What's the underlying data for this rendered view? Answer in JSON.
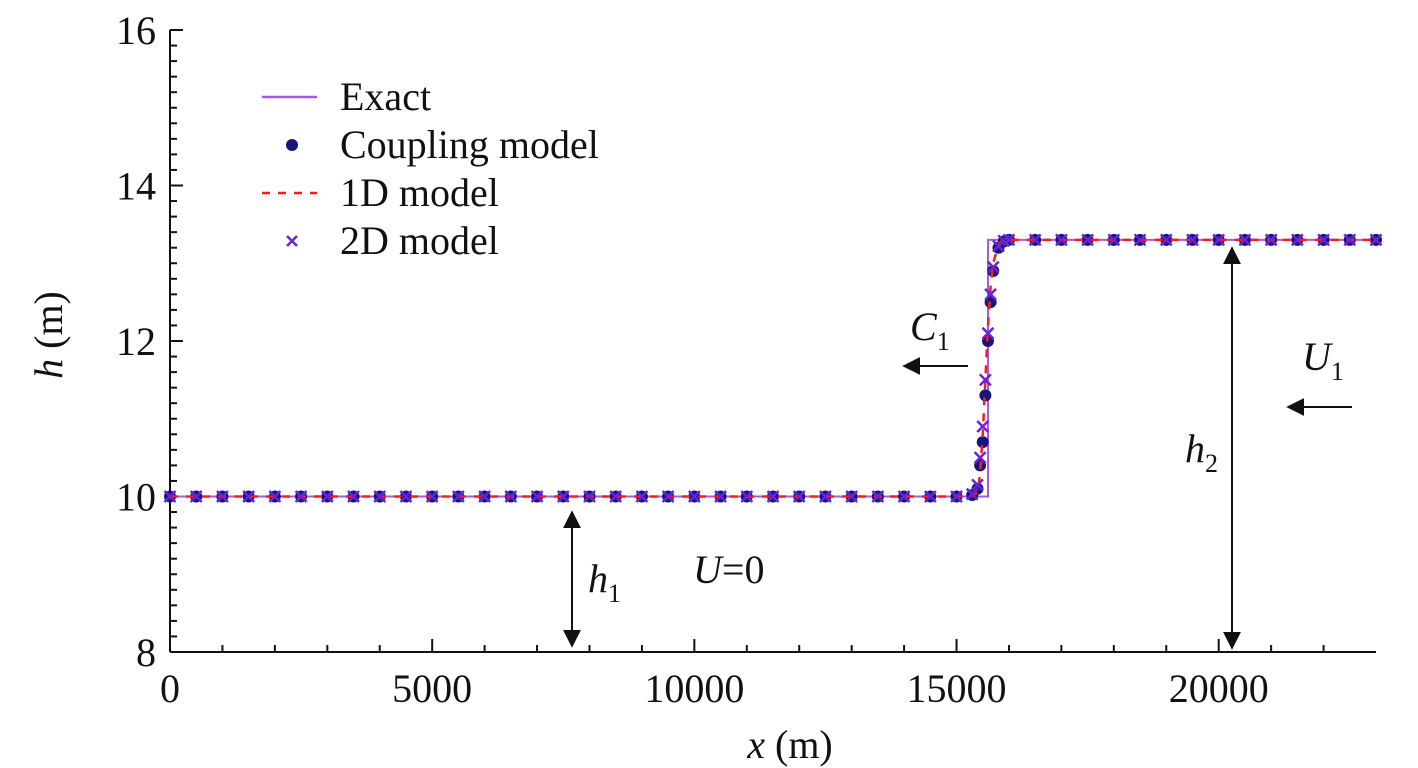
{
  "chart_data": {
    "type": "line",
    "x_label": {
      "var": "x",
      "unit": "(m)"
    },
    "y_label": {
      "var": "h",
      "unit": "(m)"
    },
    "xlim": [
      0,
      23000
    ],
    "ylim": [
      8,
      16
    ],
    "xticks": [
      0,
      5000,
      10000,
      15000,
      20000
    ],
    "yticks": [
      8,
      10,
      12,
      14,
      16
    ],
    "xminor_ticks": [
      1000,
      2000,
      3000,
      4000,
      6000,
      7000,
      8000,
      9000,
      11000,
      12000,
      13000,
      14000,
      16000,
      17000,
      18000,
      19000,
      21000,
      22000
    ],
    "yminor_ticks": [
      8.2,
      8.4,
      8.6,
      8.8,
      9,
      9.2,
      9.4,
      9.6,
      9.8,
      10.2,
      10.4,
      10.6,
      10.8,
      11,
      11.2,
      11.4,
      11.6,
      11.8,
      12.2,
      12.4,
      12.6,
      12.8,
      13,
      13.2,
      13.4,
      13.6,
      13.8,
      14.2,
      14.4,
      14.6,
      14.8,
      15,
      15.2,
      15.4,
      15.6,
      15.8
    ],
    "x": [
      0,
      500,
      1000,
      1500,
      2000,
      2500,
      3000,
      3500,
      4000,
      4500,
      5000,
      5500,
      6000,
      6500,
      7000,
      7500,
      8000,
      8500,
      9000,
      9500,
      10000,
      10500,
      11000,
      11500,
      12000,
      12500,
      13000,
      13500,
      14000,
      14500,
      15000,
      15300,
      15400,
      15450,
      15500,
      15550,
      15600,
      15650,
      15700,
      15800,
      15900,
      16000,
      16500,
      17000,
      17500,
      18000,
      18500,
      19000,
      19500,
      20000,
      20500,
      21000,
      21500,
      22000,
      22500,
      23000
    ],
    "series": [
      {
        "name": "Exact",
        "color": "#a05ce8",
        "style": "line",
        "x": [
          0,
          15600,
          15600,
          23000
        ],
        "values": [
          10,
          10,
          13.3,
          13.3
        ]
      },
      {
        "name": "Coupling model",
        "color": "#17177a",
        "style": "circle",
        "values": [
          10,
          10,
          10,
          10,
          10,
          10,
          10,
          10,
          10,
          10,
          10,
          10,
          10,
          10,
          10,
          10,
          10,
          10,
          10,
          10,
          10,
          10,
          10,
          10,
          10,
          10,
          10,
          10,
          10,
          10,
          10,
          10.02,
          10.1,
          10.4,
          10.7,
          11.3,
          12.0,
          12.5,
          12.9,
          13.2,
          13.28,
          13.3,
          13.3,
          13.3,
          13.3,
          13.3,
          13.3,
          13.3,
          13.3,
          13.3,
          13.3,
          13.3,
          13.3,
          13.3,
          13.3,
          13.3
        ]
      },
      {
        "name": "1D model",
        "color": "#ff1a1a",
        "style": "dashed",
        "values": [
          10,
          10,
          10,
          10,
          10,
          10,
          10,
          10,
          10,
          10,
          10,
          10,
          10,
          10,
          10,
          10,
          10,
          10,
          10,
          10,
          10,
          10,
          10,
          10,
          10,
          10,
          10,
          10,
          10,
          10,
          10,
          10.01,
          10.05,
          10.3,
          10.8,
          11.5,
          12.2,
          12.7,
          13.0,
          13.25,
          13.3,
          13.3,
          13.3,
          13.3,
          13.3,
          13.3,
          13.3,
          13.3,
          13.3,
          13.3,
          13.3,
          13.3,
          13.3,
          13.3,
          13.3,
          13.3
        ]
      },
      {
        "name": "2D model",
        "color": "#6a22d6",
        "style": "cross",
        "values": [
          10,
          10,
          10,
          10,
          10,
          10,
          10,
          10,
          10,
          10,
          10,
          10,
          10,
          10,
          10,
          10,
          10,
          10,
          10,
          10,
          10,
          10,
          10,
          10,
          10,
          10,
          10,
          10,
          10,
          10,
          10,
          10.03,
          10.15,
          10.5,
          10.9,
          11.5,
          12.1,
          12.6,
          12.95,
          13.22,
          13.29,
          13.3,
          13.3,
          13.3,
          13.3,
          13.3,
          13.3,
          13.3,
          13.3,
          13.3,
          13.3,
          13.3,
          13.3,
          13.3,
          13.3,
          13.3
        ]
      }
    ],
    "legend": "upper left",
    "annotations": [
      {
        "text": "C",
        "sub": "1"
      },
      {
        "text": "U",
        "sub": "1"
      },
      {
        "text": "h",
        "sub": "2"
      },
      {
        "text": "h",
        "sub": "1"
      },
      {
        "text": "U",
        "rest": "=0"
      }
    ]
  }
}
